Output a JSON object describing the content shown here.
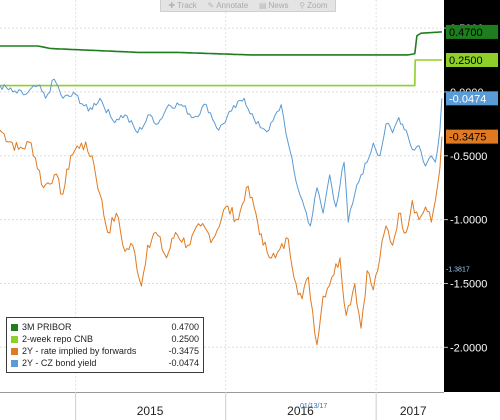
{
  "toolbar": {
    "items": [
      {
        "icon": "plus-icon",
        "glyph": "✚",
        "label": "Track"
      },
      {
        "icon": "pencil-icon",
        "glyph": "✎",
        "label": "Annotate"
      },
      {
        "icon": "news-icon",
        "glyph": "▤",
        "label": "News"
      },
      {
        "icon": "zoom-icon",
        "glyph": "⚲",
        "label": "Zoom"
      }
    ]
  },
  "date_marker": "01/13/17",
  "chart_data": {
    "type": "line",
    "x_axis": {
      "type": "date",
      "range": [
        "2014-07-01",
        "2017-06-15"
      ],
      "tick_labels": [
        "2015",
        "2016",
        "2017"
      ],
      "tick_dates": [
        "2015-07-01",
        "2016-07-01",
        "2017-04-01"
      ]
    },
    "y_axis": {
      "position": "right",
      "range": [
        -2.35,
        0.72
      ],
      "ticks": [
        0.5,
        0,
        -0.5,
        -1.0,
        -1.5,
        -2.0
      ],
      "tick_labels": [
        "0.5000",
        "0.0000",
        "-0.5000",
        "-1.0000",
        "-1.5000",
        "-2.0000"
      ]
    },
    "grid": true,
    "legend_placement": "bottom-left",
    "extra_label": {
      "text": "-1.3817",
      "value": -1.3817
    },
    "series": [
      {
        "name": "3M PRIBOR",
        "color": "#1e7e1e",
        "last_value": "0.4700",
        "points": [
          [
            "2014-07-01",
            0.36
          ],
          [
            "2014-10-01",
            0.36
          ],
          [
            "2014-11-01",
            0.34
          ],
          [
            "2015-06-01",
            0.31
          ],
          [
            "2015-09-01",
            0.31
          ],
          [
            "2016-03-01",
            0.29
          ],
          [
            "2016-09-01",
            0.29
          ],
          [
            "2017-03-20",
            0.29
          ],
          [
            "2017-04-05",
            0.3
          ],
          [
            "2017-04-10",
            0.44
          ],
          [
            "2017-04-20",
            0.46
          ],
          [
            "2017-06-10",
            0.47
          ]
        ]
      },
      {
        "name": "2-week repo CNB",
        "color": "#8fcf2a",
        "last_value": "0.2500",
        "points": [
          [
            "2014-07-01",
            0.05
          ],
          [
            "2017-04-05",
            0.05
          ],
          [
            "2017-04-06",
            0.25
          ],
          [
            "2017-06-10",
            0.25
          ]
        ]
      },
      {
        "name": "2Y - rate implied by forwards",
        "color": "#e07a22",
        "last_value": "-0.3475",
        "points": [
          [
            "2014-07-01",
            -0.3
          ],
          [
            "2014-08-15",
            -0.45
          ],
          [
            "2014-09-15",
            -0.4
          ],
          [
            "2014-10-15",
            -0.75
          ],
          [
            "2014-11-10",
            -0.65
          ],
          [
            "2014-12-01",
            -0.8
          ],
          [
            "2014-12-20",
            -0.5
          ],
          [
            "2015-01-15",
            -0.4
          ],
          [
            "2015-02-10",
            -0.5
          ],
          [
            "2015-03-01",
            -0.8
          ],
          [
            "2015-03-20",
            -1.1
          ],
          [
            "2015-04-10",
            -0.95
          ],
          [
            "2015-05-01",
            -1.25
          ],
          [
            "2015-05-20",
            -1.2
          ],
          [
            "2015-06-10",
            -1.52
          ],
          [
            "2015-06-25",
            -1.2
          ],
          [
            "2015-07-15",
            -1.1
          ],
          [
            "2015-08-10",
            -1.3
          ],
          [
            "2015-09-01",
            -1.1
          ],
          [
            "2015-10-01",
            -1.2
          ],
          [
            "2015-11-01",
            -1.05
          ],
          [
            "2015-12-01",
            -1.15
          ],
          [
            "2016-01-01",
            -0.9
          ],
          [
            "2016-02-01",
            -1.0
          ],
          [
            "2016-02-20",
            -0.75
          ],
          [
            "2016-03-10",
            -0.9
          ],
          [
            "2016-04-01",
            -1.2
          ],
          [
            "2016-05-01",
            -1.3
          ],
          [
            "2016-06-01",
            -1.15
          ],
          [
            "2016-06-20",
            -1.5
          ],
          [
            "2016-07-05",
            -1.62
          ],
          [
            "2016-07-20",
            -1.45
          ],
          [
            "2016-08-10",
            -1.98
          ],
          [
            "2016-08-25",
            -1.6
          ],
          [
            "2016-09-15",
            -1.45
          ],
          [
            "2016-10-05",
            -1.3
          ],
          [
            "2016-10-20",
            -1.75
          ],
          [
            "2016-11-10",
            -1.5
          ],
          [
            "2016-11-25",
            -1.85
          ],
          [
            "2016-12-10",
            -1.4
          ],
          [
            "2016-12-25",
            -1.55
          ],
          [
            "2017-01-10",
            -1.3
          ],
          [
            "2017-01-25",
            -1.05
          ],
          [
            "2017-02-10",
            -1.2
          ],
          [
            "2017-02-25",
            -0.95
          ],
          [
            "2017-03-15",
            -1.1
          ],
          [
            "2017-03-30",
            -0.85
          ],
          [
            "2017-04-15",
            -1.0
          ],
          [
            "2017-05-01",
            -0.9
          ],
          [
            "2017-05-15",
            -1.02
          ],
          [
            "2017-05-25",
            -0.85
          ],
          [
            "2017-06-05",
            -0.6
          ],
          [
            "2017-06-10",
            -0.35
          ]
        ]
      },
      {
        "name": "2Y - CZ bond yield",
        "color": "#5b9bd5",
        "last_value": "-0.0474",
        "points": [
          [
            "2014-07-01",
            0.05
          ],
          [
            "2014-08-01",
            0.0
          ],
          [
            "2014-09-01",
            -0.02
          ],
          [
            "2014-10-01",
            0.05
          ],
          [
            "2014-10-20",
            -0.05
          ],
          [
            "2014-11-10",
            0.1
          ],
          [
            "2014-12-01",
            -0.05
          ],
          [
            "2015-01-01",
            -0.02
          ],
          [
            "2015-02-01",
            -0.15
          ],
          [
            "2015-03-01",
            -0.05
          ],
          [
            "2015-04-01",
            -0.22
          ],
          [
            "2015-05-01",
            -0.18
          ],
          [
            "2015-06-01",
            -0.32
          ],
          [
            "2015-07-01",
            -0.18
          ],
          [
            "2015-07-20",
            -0.25
          ],
          [
            "2015-08-15",
            -0.1
          ],
          [
            "2015-09-15",
            -0.1
          ],
          [
            "2015-10-15",
            -0.2
          ],
          [
            "2015-11-15",
            -0.1
          ],
          [
            "2015-12-15",
            -0.3
          ],
          [
            "2016-01-15",
            -0.15
          ],
          [
            "2016-02-15",
            -0.05
          ],
          [
            "2016-03-15",
            -0.25
          ],
          [
            "2016-04-15",
            -0.3
          ],
          [
            "2016-05-15",
            -0.1
          ],
          [
            "2016-06-01",
            -0.4
          ],
          [
            "2016-06-20",
            -0.7
          ],
          [
            "2016-07-10",
            -0.9
          ],
          [
            "2016-07-25",
            -1.05
          ],
          [
            "2016-08-10",
            -0.75
          ],
          [
            "2016-08-25",
            -0.95
          ],
          [
            "2016-09-10",
            -0.65
          ],
          [
            "2016-09-25",
            -0.9
          ],
          [
            "2016-10-15",
            -0.55
          ],
          [
            "2016-10-25",
            -1.02
          ],
          [
            "2016-11-10",
            -0.8
          ],
          [
            "2016-11-25",
            -0.65
          ],
          [
            "2016-12-10",
            -0.55
          ],
          [
            "2016-12-25",
            -0.4
          ],
          [
            "2017-01-10",
            -0.5
          ],
          [
            "2017-01-25",
            -0.25
          ],
          [
            "2017-02-10",
            -0.32
          ],
          [
            "2017-02-25",
            -0.2
          ],
          [
            "2017-03-15",
            -0.3
          ],
          [
            "2017-03-30",
            -0.45
          ],
          [
            "2017-04-15",
            -0.42
          ],
          [
            "2017-05-01",
            -0.58
          ],
          [
            "2017-05-15",
            -0.5
          ],
          [
            "2017-05-25",
            -0.55
          ],
          [
            "2017-06-05",
            -0.3
          ],
          [
            "2017-06-10",
            -0.05
          ]
        ]
      }
    ]
  }
}
